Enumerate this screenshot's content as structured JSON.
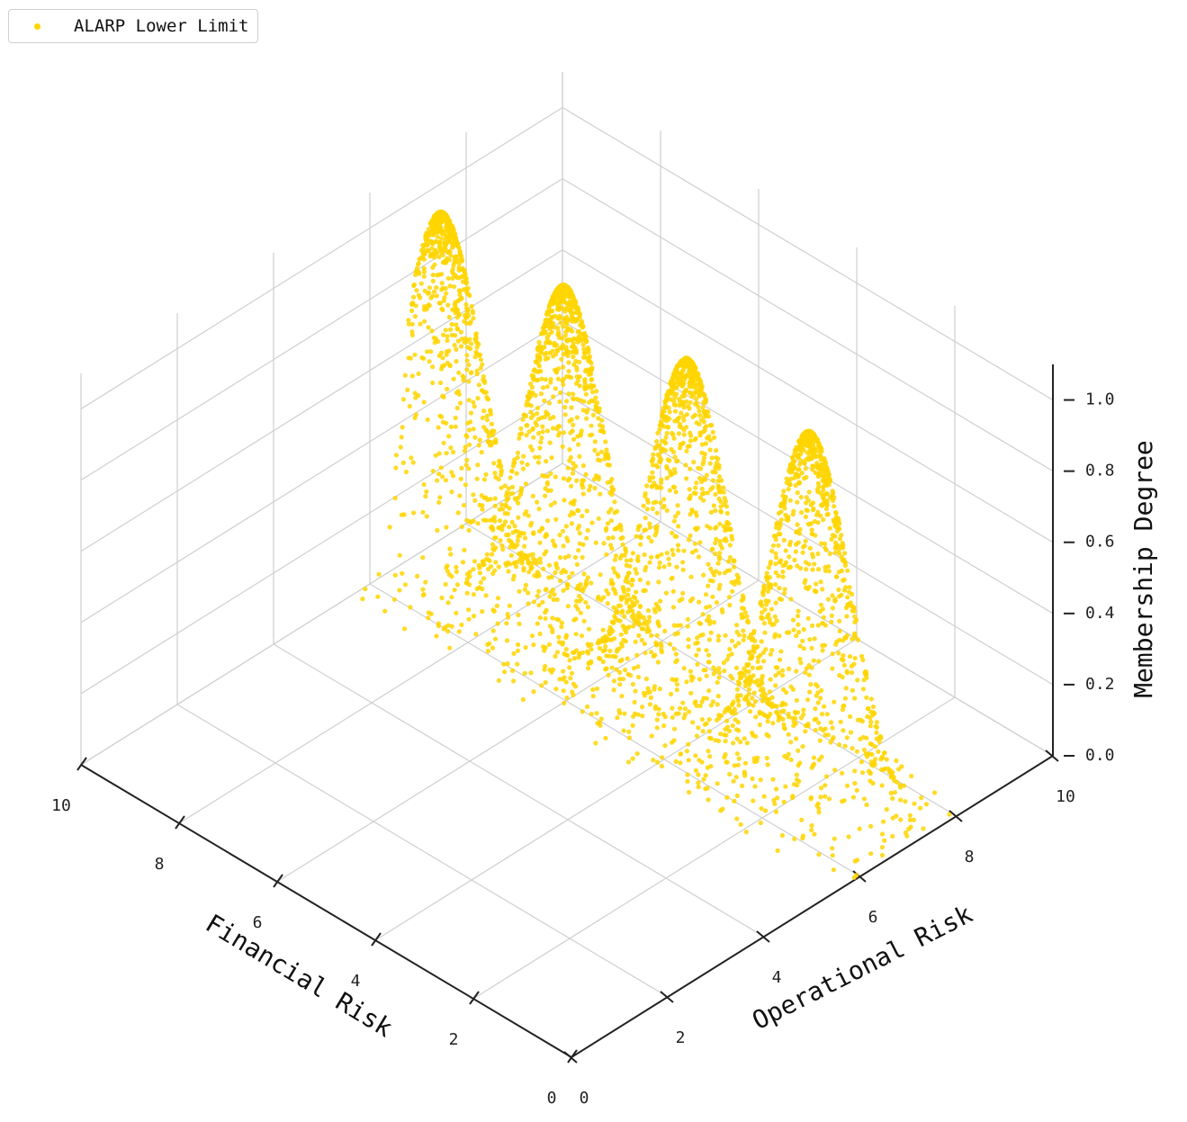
{
  "chart_data": {
    "type": "scatter",
    "projection": "3d",
    "series": [
      {
        "name": "ALARP Lower Limit",
        "color": "#FFD500",
        "peaks": [
          {
            "x": 9.5,
            "y": 7.0,
            "z": 1.0
          },
          {
            "x": 7.0,
            "y": 7.0,
            "z": 1.0
          },
          {
            "x": 4.5,
            "y": 7.0,
            "z": 1.0
          },
          {
            "x": 2.0,
            "y": 7.0,
            "z": 1.0
          }
        ]
      }
    ],
    "xlabel": "Financial Risk",
    "ylabel": "Operational Risk",
    "zlabel": "Membership Degree",
    "xlim": [
      0,
      10
    ],
    "ylim": [
      0,
      10
    ],
    "zlim": [
      0,
      1.1
    ],
    "xticks": [
      "0",
      "2",
      "4",
      "6",
      "8",
      "10"
    ],
    "yticks": [
      "0",
      "2",
      "4",
      "6",
      "8",
      "10"
    ],
    "zticks": [
      "0.0",
      "0.2",
      "0.4",
      "0.6",
      "0.8",
      "1.0"
    ],
    "grid": true,
    "legend_position": "top-left"
  }
}
